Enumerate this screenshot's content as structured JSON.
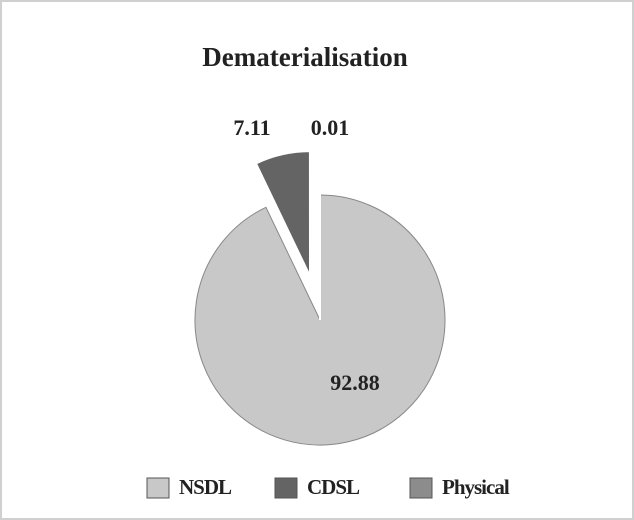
{
  "chart_data": {
    "type": "pie",
    "title": "Dematerialisation",
    "categories": [
      "NSDL",
      "CDSL",
      "Physical"
    ],
    "values": [
      92.88,
      7.11,
      0.01
    ],
    "colors": [
      "#c8c8c8",
      "#646464",
      "#8c8c8c"
    ],
    "exploded": [
      false,
      true,
      false
    ],
    "legend": "bottom"
  }
}
